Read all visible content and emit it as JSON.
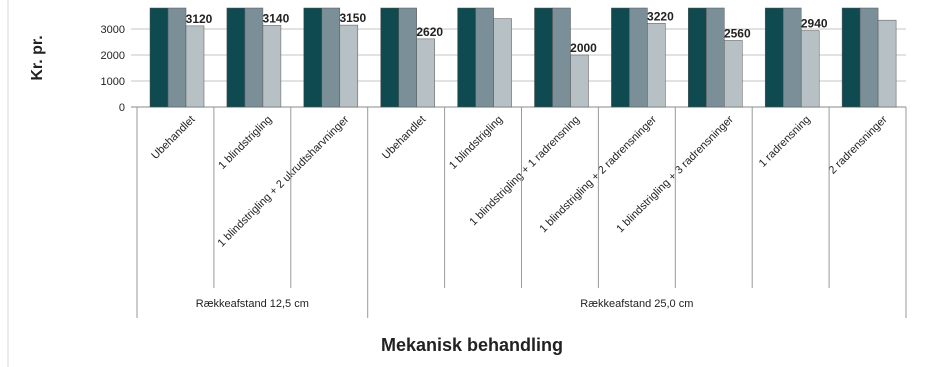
{
  "chart_data": {
    "type": "bar",
    "ylabel": "Kr. pr.",
    "xlabel": "Mekanisk behandling",
    "yticks": [
      "0",
      "1000",
      "2000",
      "3000"
    ],
    "categories": [
      "Ubehandlet",
      "1 blindstrigling",
      "1 blindstrigling + 2 ukrudtsharvninger",
      "Ubehandlet",
      "1 blindstrigling",
      "1 blindstrigling + 1 radrensning",
      "1 blindstrigling + 2 radrensninger",
      "1 blindstrigling + 3 radrensninger",
      "1 radrensning",
      "2 radrensninger"
    ],
    "groups": [
      {
        "label": "Rækkeafstand 12,5 cm",
        "count": 3
      },
      {
        "label": "Rækkeafstand 25,0 cm",
        "count": 7
      }
    ],
    "series": [
      {
        "color": "#0e4a4f",
        "values": [
          null,
          null,
          null,
          null,
          null,
          null,
          null,
          null,
          null,
          null
        ]
      },
      {
        "color": "#7b8f98",
        "values": [
          null,
          null,
          null,
          null,
          null,
          null,
          null,
          null,
          null,
          null
        ]
      },
      {
        "color": "#b7c1c5",
        "values": [
          3120,
          3140,
          3150,
          2620,
          3400,
          2000,
          3220,
          2560,
          2940,
          3340
        ]
      }
    ],
    "data_labels": [
      "3120",
      "3140",
      "3150",
      "2620",
      "",
      "2000",
      "3220",
      "2560",
      "2940",
      ""
    ],
    "ylim": [
      0,
      3900
    ],
    "grid": true
  }
}
